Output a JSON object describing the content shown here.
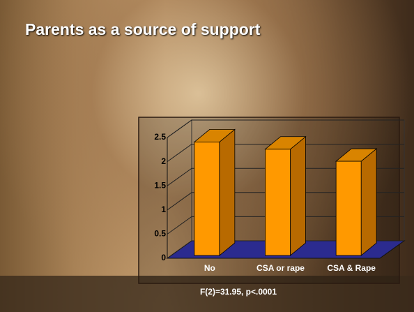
{
  "chart_data": {
    "type": "bar3d",
    "title": "Parents as a source of support",
    "caption": "F(2)=31.95, p<.0001",
    "categories": [
      "No",
      "CSA or rape",
      "CSA & Rape"
    ],
    "values": [
      2.35,
      2.2,
      1.95
    ],
    "color": "#ff9900",
    "floor_color": "#2b2b8f",
    "ylim": [
      0,
      2.5
    ],
    "yticks": [
      0,
      0.5,
      1,
      1.5,
      2,
      2.5
    ],
    "grid": true
  }
}
